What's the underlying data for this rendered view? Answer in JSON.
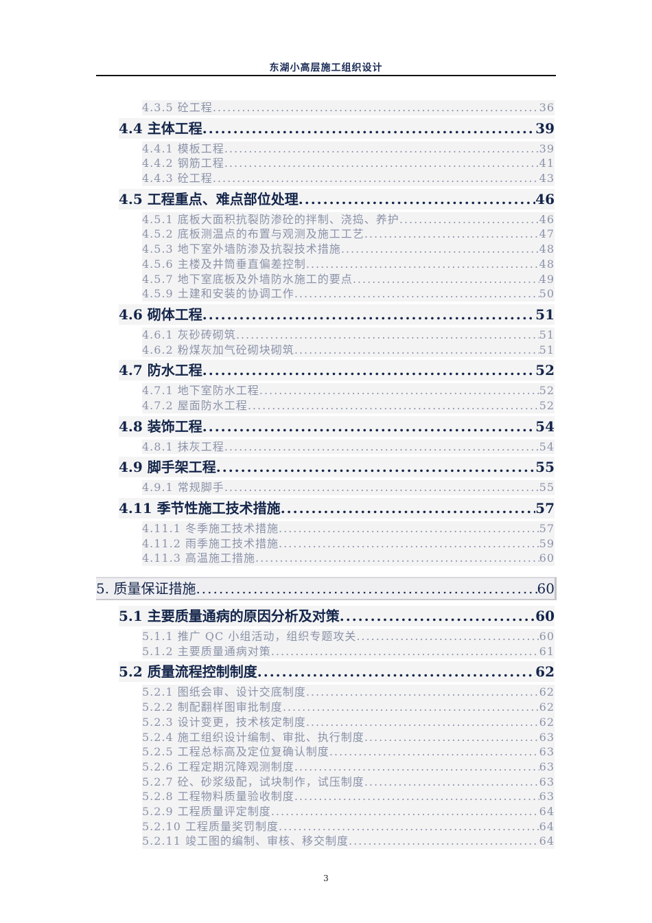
{
  "header": {
    "title": "东湖小高层施工组织设计"
  },
  "toc": [
    {
      "level": 3,
      "title": "4.3.5 砼工程",
      "page": "36"
    },
    {
      "level": 2,
      "title": "4.4 主体工程",
      "page": "39"
    },
    {
      "level": 3,
      "title": "4.4.1 模板工程",
      "page": "39"
    },
    {
      "level": 3,
      "title": "4.4.2 钢筋工程",
      "page": "41"
    },
    {
      "level": 3,
      "title": "4.4.3 砼工程",
      "page": "43"
    },
    {
      "level": 2,
      "title": "4.5 工程重点、难点部位处理",
      "page": "46"
    },
    {
      "level": 3,
      "title": "4.5.1 底板大面积抗裂防渗砼的拌制、浇捣、养护",
      "page": "46"
    },
    {
      "level": 3,
      "title": "4.5.2 底板测温点的布置与观测及施工工艺",
      "page": "47"
    },
    {
      "level": 3,
      "title": "4.5.3 地下室外墙防渗及抗裂技术措施",
      "page": "48"
    },
    {
      "level": 3,
      "title": "4.5.6 主楼及井筒垂直偏差控制",
      "page": "48"
    },
    {
      "level": 3,
      "title": "4.5.7 地下室底板及外墙防水施工的要点",
      "page": "49"
    },
    {
      "level": 3,
      "title": "4.5.9 土建和安装的协调工作",
      "page": "50"
    },
    {
      "level": 2,
      "title": "4.6 砌体工程",
      "page": "51"
    },
    {
      "level": 3,
      "title": "4.6.1 灰砂砖砌筑",
      "page": "51"
    },
    {
      "level": 3,
      "title": "4.6.2 粉煤灰加气砼砌块砌筑",
      "page": "51"
    },
    {
      "level": 2,
      "title": "4.7 防水工程",
      "page": "52"
    },
    {
      "level": 3,
      "title": "4.7.1 地下室防水工程",
      "page": "52"
    },
    {
      "level": 3,
      "title": "4.7.2 屋面防水工程",
      "page": "52"
    },
    {
      "level": 2,
      "title": "4.8 装饰工程",
      "page": "54"
    },
    {
      "level": 3,
      "title": "4.8.1 抹灰工程",
      "page": "54"
    },
    {
      "level": 2,
      "title": "4.9 脚手架工程",
      "page": "55"
    },
    {
      "level": 3,
      "title": "4.9.1 常规脚手",
      "page": "55"
    },
    {
      "level": 2,
      "title": "4.11 季节性施工技术措施",
      "page": "57"
    },
    {
      "level": 3,
      "title": "4.11.1 冬季施工技术措施",
      "page": "57"
    },
    {
      "level": 3,
      "title": "4.11.2 雨季施工技术措施",
      "page": "59"
    },
    {
      "level": 3,
      "title": "4.11.3 高温施工措施",
      "page": "60"
    },
    {
      "level": 1,
      "title": "5. 质量保证措施",
      "page": "60"
    },
    {
      "level": 2,
      "title": "5.1 主要质量通病的原因分析及对策",
      "page": "60"
    },
    {
      "level": 3,
      "title": "5.1.1 推广 QC 小组活动，组织专题攻关",
      "page": "60"
    },
    {
      "level": 3,
      "title": "5.1.2 主要质量通病对策",
      "page": "61"
    },
    {
      "level": 2,
      "title": "5.2 质量流程控制制度",
      "page": "62"
    },
    {
      "level": 3,
      "title": "5.2.1 图纸会审、设计交底制度",
      "page": "62"
    },
    {
      "level": 3,
      "title": "5.2.2 制配翻样图审批制度",
      "page": "62"
    },
    {
      "level": 3,
      "title": "5.2.3 设计变更，技术核定制度",
      "page": "62"
    },
    {
      "level": 3,
      "title": "5.2.4 施工组织设计编制、审批、执行制度",
      "page": "63"
    },
    {
      "level": 3,
      "title": "5.2.5 工程总标高及定位复确认制度",
      "page": "63"
    },
    {
      "level": 3,
      "title": "5.2.6 工程定期沉降观测制度",
      "page": "63"
    },
    {
      "level": 3,
      "title": "5.2.7 砼、砂浆级配，试块制作，试压制度",
      "page": "63"
    },
    {
      "level": 3,
      "title": "5.2.8 工程物料质量验收制度",
      "page": "63"
    },
    {
      "level": 3,
      "title": "5.2.9 工程质量评定制度",
      "page": "64"
    },
    {
      "level": 3,
      "title": "5.2.10 工程质量奖罚制度",
      "page": "64"
    },
    {
      "level": 3,
      "title": "5.2.11 竣工图的编制、审核、移交制度",
      "page": "64"
    }
  ],
  "footer": {
    "page_number": "3"
  }
}
